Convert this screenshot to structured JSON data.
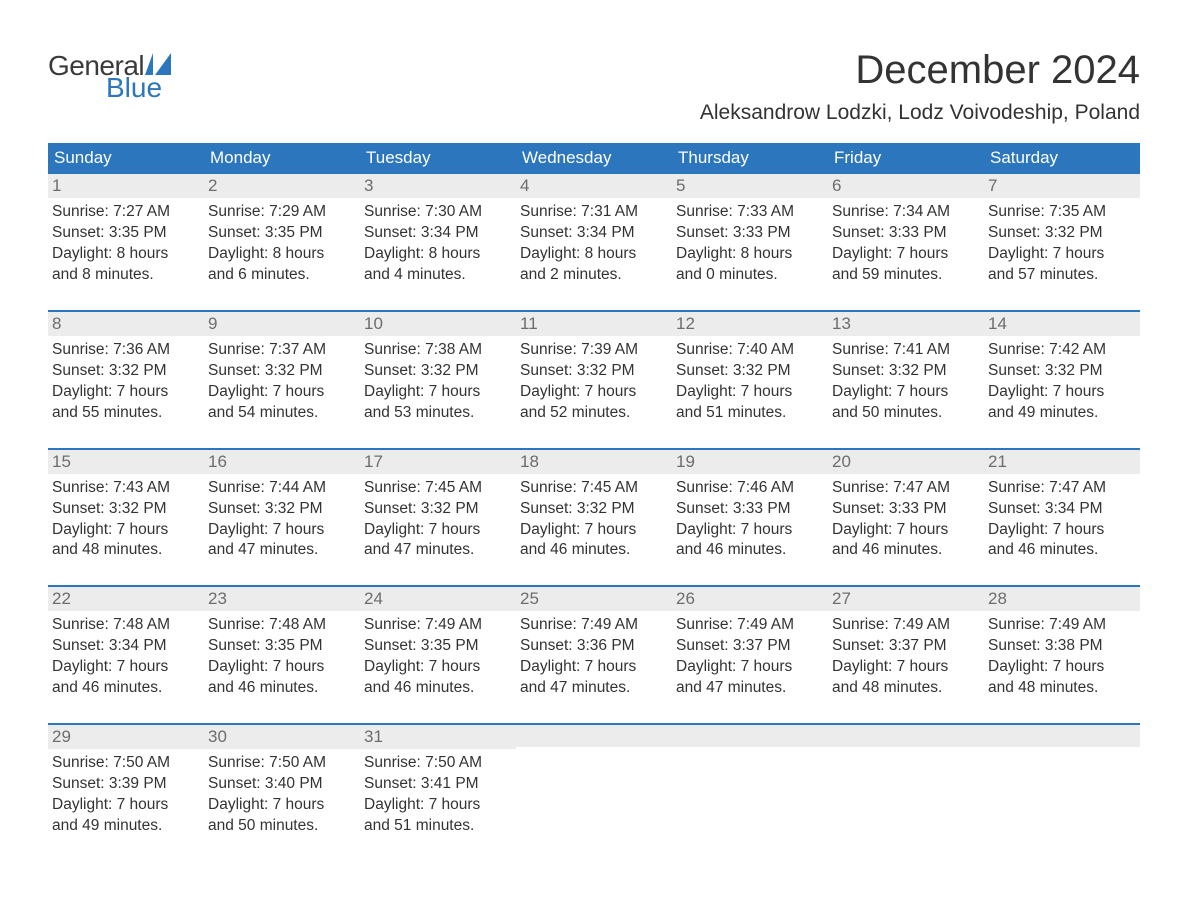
{
  "brand": {
    "word1": "General",
    "word2": "Blue",
    "accent_color": "#2b76bc"
  },
  "title": "December 2024",
  "location": "Aleksandrow Lodzki, Lodz Voivodeship, Poland",
  "colors": {
    "header_bg": "#2b76bc",
    "header_text": "#ffffff",
    "daynum_bg": "#ececec",
    "daynum_text": "#6d6d6d",
    "body_text": "#333333",
    "page_bg": "#ffffff",
    "week_divider": "#2b76bc"
  },
  "typography": {
    "title_fontsize": 40,
    "subtitle_fontsize": 21,
    "dow_fontsize": 17,
    "daynum_fontsize": 17,
    "body_fontsize": 15.5
  },
  "days_of_week": [
    "Sunday",
    "Monday",
    "Tuesday",
    "Wednesday",
    "Thursday",
    "Friday",
    "Saturday"
  ],
  "weeks": [
    [
      {
        "n": "1",
        "sunrise": "Sunrise: 7:27 AM",
        "sunset": "Sunset: 3:35 PM",
        "d1": "Daylight: 8 hours",
        "d2": "and 8 minutes."
      },
      {
        "n": "2",
        "sunrise": "Sunrise: 7:29 AM",
        "sunset": "Sunset: 3:35 PM",
        "d1": "Daylight: 8 hours",
        "d2": "and 6 minutes."
      },
      {
        "n": "3",
        "sunrise": "Sunrise: 7:30 AM",
        "sunset": "Sunset: 3:34 PM",
        "d1": "Daylight: 8 hours",
        "d2": "and 4 minutes."
      },
      {
        "n": "4",
        "sunrise": "Sunrise: 7:31 AM",
        "sunset": "Sunset: 3:34 PM",
        "d1": "Daylight: 8 hours",
        "d2": "and 2 minutes."
      },
      {
        "n": "5",
        "sunrise": "Sunrise: 7:33 AM",
        "sunset": "Sunset: 3:33 PM",
        "d1": "Daylight: 8 hours",
        "d2": "and 0 minutes."
      },
      {
        "n": "6",
        "sunrise": "Sunrise: 7:34 AM",
        "sunset": "Sunset: 3:33 PM",
        "d1": "Daylight: 7 hours",
        "d2": "and 59 minutes."
      },
      {
        "n": "7",
        "sunrise": "Sunrise: 7:35 AM",
        "sunset": "Sunset: 3:32 PM",
        "d1": "Daylight: 7 hours",
        "d2": "and 57 minutes."
      }
    ],
    [
      {
        "n": "8",
        "sunrise": "Sunrise: 7:36 AM",
        "sunset": "Sunset: 3:32 PM",
        "d1": "Daylight: 7 hours",
        "d2": "and 55 minutes."
      },
      {
        "n": "9",
        "sunrise": "Sunrise: 7:37 AM",
        "sunset": "Sunset: 3:32 PM",
        "d1": "Daylight: 7 hours",
        "d2": "and 54 minutes."
      },
      {
        "n": "10",
        "sunrise": "Sunrise: 7:38 AM",
        "sunset": "Sunset: 3:32 PM",
        "d1": "Daylight: 7 hours",
        "d2": "and 53 minutes."
      },
      {
        "n": "11",
        "sunrise": "Sunrise: 7:39 AM",
        "sunset": "Sunset: 3:32 PM",
        "d1": "Daylight: 7 hours",
        "d2": "and 52 minutes."
      },
      {
        "n": "12",
        "sunrise": "Sunrise: 7:40 AM",
        "sunset": "Sunset: 3:32 PM",
        "d1": "Daylight: 7 hours",
        "d2": "and 51 minutes."
      },
      {
        "n": "13",
        "sunrise": "Sunrise: 7:41 AM",
        "sunset": "Sunset: 3:32 PM",
        "d1": "Daylight: 7 hours",
        "d2": "and 50 minutes."
      },
      {
        "n": "14",
        "sunrise": "Sunrise: 7:42 AM",
        "sunset": "Sunset: 3:32 PM",
        "d1": "Daylight: 7 hours",
        "d2": "and 49 minutes."
      }
    ],
    [
      {
        "n": "15",
        "sunrise": "Sunrise: 7:43 AM",
        "sunset": "Sunset: 3:32 PM",
        "d1": "Daylight: 7 hours",
        "d2": "and 48 minutes."
      },
      {
        "n": "16",
        "sunrise": "Sunrise: 7:44 AM",
        "sunset": "Sunset: 3:32 PM",
        "d1": "Daylight: 7 hours",
        "d2": "and 47 minutes."
      },
      {
        "n": "17",
        "sunrise": "Sunrise: 7:45 AM",
        "sunset": "Sunset: 3:32 PM",
        "d1": "Daylight: 7 hours",
        "d2": "and 47 minutes."
      },
      {
        "n": "18",
        "sunrise": "Sunrise: 7:45 AM",
        "sunset": "Sunset: 3:32 PM",
        "d1": "Daylight: 7 hours",
        "d2": "and 46 minutes."
      },
      {
        "n": "19",
        "sunrise": "Sunrise: 7:46 AM",
        "sunset": "Sunset: 3:33 PM",
        "d1": "Daylight: 7 hours",
        "d2": "and 46 minutes."
      },
      {
        "n": "20",
        "sunrise": "Sunrise: 7:47 AM",
        "sunset": "Sunset: 3:33 PM",
        "d1": "Daylight: 7 hours",
        "d2": "and 46 minutes."
      },
      {
        "n": "21",
        "sunrise": "Sunrise: 7:47 AM",
        "sunset": "Sunset: 3:34 PM",
        "d1": "Daylight: 7 hours",
        "d2": "and 46 minutes."
      }
    ],
    [
      {
        "n": "22",
        "sunrise": "Sunrise: 7:48 AM",
        "sunset": "Sunset: 3:34 PM",
        "d1": "Daylight: 7 hours",
        "d2": "and 46 minutes."
      },
      {
        "n": "23",
        "sunrise": "Sunrise: 7:48 AM",
        "sunset": "Sunset: 3:35 PM",
        "d1": "Daylight: 7 hours",
        "d2": "and 46 minutes."
      },
      {
        "n": "24",
        "sunrise": "Sunrise: 7:49 AM",
        "sunset": "Sunset: 3:35 PM",
        "d1": "Daylight: 7 hours",
        "d2": "and 46 minutes."
      },
      {
        "n": "25",
        "sunrise": "Sunrise: 7:49 AM",
        "sunset": "Sunset: 3:36 PM",
        "d1": "Daylight: 7 hours",
        "d2": "and 47 minutes."
      },
      {
        "n": "26",
        "sunrise": "Sunrise: 7:49 AM",
        "sunset": "Sunset: 3:37 PM",
        "d1": "Daylight: 7 hours",
        "d2": "and 47 minutes."
      },
      {
        "n": "27",
        "sunrise": "Sunrise: 7:49 AM",
        "sunset": "Sunset: 3:37 PM",
        "d1": "Daylight: 7 hours",
        "d2": "and 48 minutes."
      },
      {
        "n": "28",
        "sunrise": "Sunrise: 7:49 AM",
        "sunset": "Sunset: 3:38 PM",
        "d1": "Daylight: 7 hours",
        "d2": "and 48 minutes."
      }
    ],
    [
      {
        "n": "29",
        "sunrise": "Sunrise: 7:50 AM",
        "sunset": "Sunset: 3:39 PM",
        "d1": "Daylight: 7 hours",
        "d2": "and 49 minutes."
      },
      {
        "n": "30",
        "sunrise": "Sunrise: 7:50 AM",
        "sunset": "Sunset: 3:40 PM",
        "d1": "Daylight: 7 hours",
        "d2": "and 50 minutes."
      },
      {
        "n": "31",
        "sunrise": "Sunrise: 7:50 AM",
        "sunset": "Sunset: 3:41 PM",
        "d1": "Daylight: 7 hours",
        "d2": "and 51 minutes."
      },
      {
        "empty": true
      },
      {
        "empty": true
      },
      {
        "empty": true
      },
      {
        "empty": true
      }
    ]
  ]
}
